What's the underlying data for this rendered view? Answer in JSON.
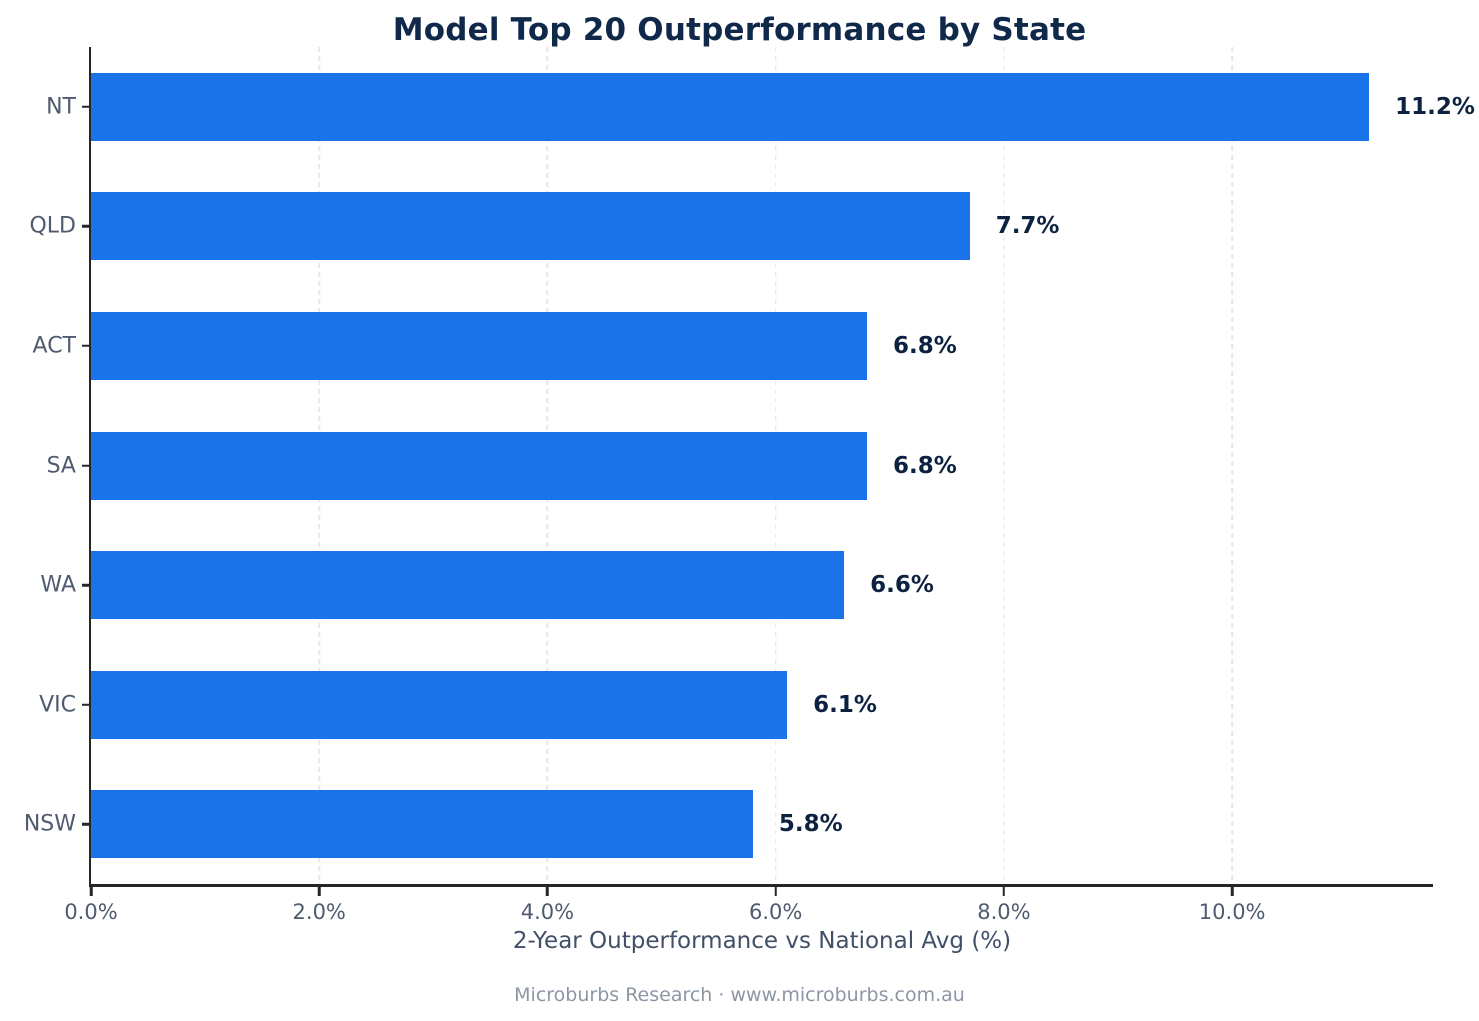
{
  "chart_data": {
    "type": "bar",
    "orientation": "horizontal",
    "title": "Model Top 20 Outperformance by State",
    "xlabel": "2-Year Outperformance vs National Avg (%)",
    "ylabel": "",
    "categories": [
      "NT",
      "QLD",
      "ACT",
      "SA",
      "WA",
      "VIC",
      "NSW"
    ],
    "values": [
      11.2,
      7.7,
      6.8,
      6.8,
      6.6,
      6.1,
      5.8
    ],
    "value_labels": [
      "11.2%",
      "7.7%",
      "6.8%",
      "6.8%",
      "6.6%",
      "6.1%",
      "5.8%"
    ],
    "xlim": [
      0,
      11.76
    ],
    "x_ticks": [
      {
        "value": 0,
        "label": "0.0%"
      },
      {
        "value": 2,
        "label": "2.0%"
      },
      {
        "value": 4,
        "label": "4.0%"
      },
      {
        "value": 6,
        "label": "6.0%"
      },
      {
        "value": 8,
        "label": "8.0%"
      },
      {
        "value": 10,
        "label": "10.0%"
      }
    ],
    "grid": "vertical-dashed",
    "legend": "none"
  },
  "footer": {
    "text": "Microburbs Research · www.microburbs.com.au"
  },
  "colors": {
    "bar": "#1a73e8",
    "title": "#10294b",
    "value_label": "#0d2240",
    "axis_text": "#4f5b6e",
    "xlabel_text": "#414f68",
    "footer_text": "#8d96a5",
    "spine": "#262626",
    "grid": "#e7e7e7",
    "background": "#ffffff"
  }
}
